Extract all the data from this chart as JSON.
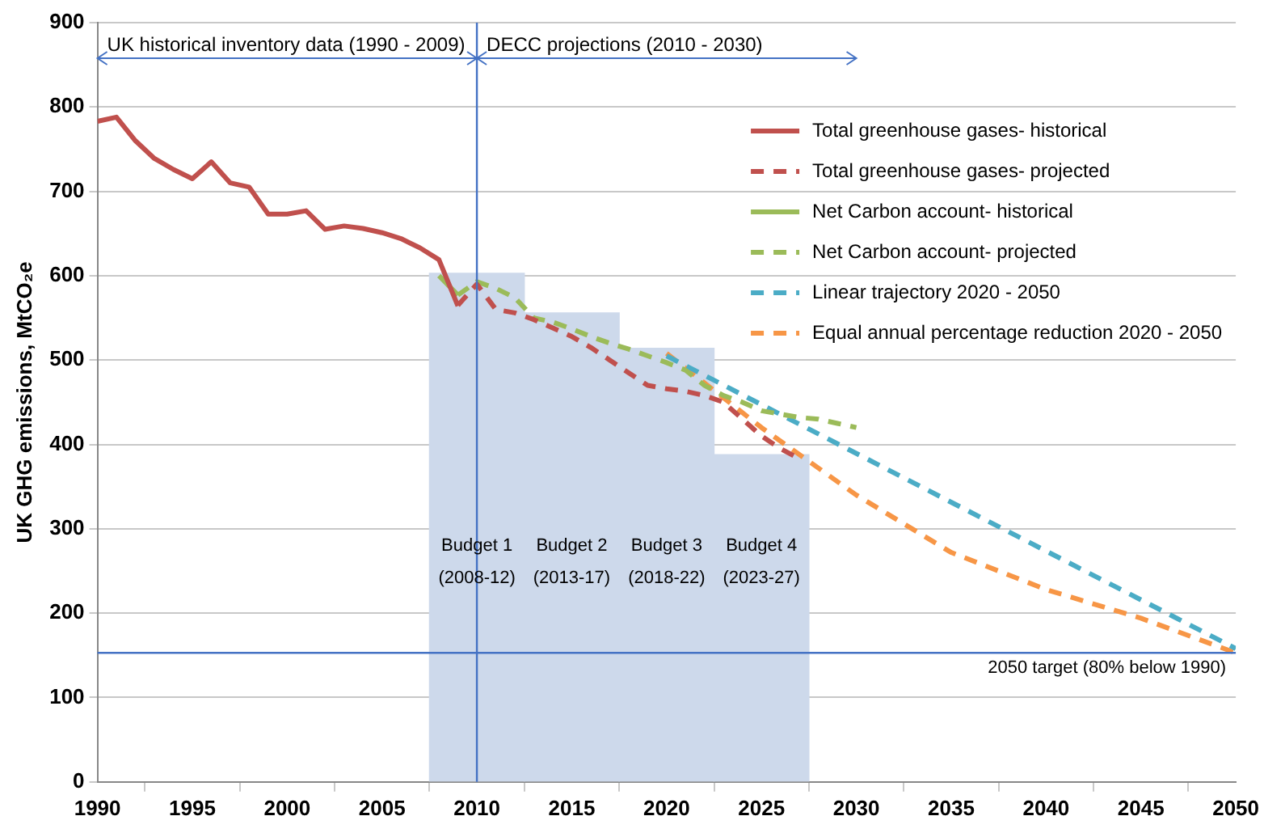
{
  "chart_data": {
    "type": "line",
    "ylabel": "UK GHG emissions, MtCO₂e",
    "xlim": [
      1990,
      2050
    ],
    "xticks": [
      1990,
      1995,
      2000,
      2005,
      2010,
      2015,
      2020,
      2025,
      2030,
      2035,
      2040,
      2045,
      2050
    ],
    "ylim": [
      0,
      900
    ],
    "yticks": [
      0,
      100,
      200,
      300,
      400,
      500,
      600,
      700,
      800,
      900
    ],
    "grid": "y",
    "legend": "top right",
    "series": [
      {
        "type": "bar",
        "color": "#cdd9eb",
        "x": [
          2010,
          2015,
          2020,
          2025
        ],
        "values": [
          603,
          556,
          514,
          388
        ]
      },
      {
        "name": "Total greenhouse gases- historical",
        "color": "#c0504d",
        "line_style": "solid",
        "x": [
          1990,
          1991,
          1992,
          1993,
          1994,
          1995,
          1996,
          1997,
          1998,
          1999,
          2000,
          2001,
          2002,
          2003,
          2004,
          2005,
          2006,
          2007,
          2008,
          2009
        ],
        "values": [
          783,
          788,
          760,
          739,
          726,
          715,
          735,
          710,
          705,
          673,
          673,
          677,
          655,
          659,
          656,
          651,
          644,
          633,
          619,
          564
        ]
      },
      {
        "name": "Total greenhouse gases- projected",
        "color": "#c0504d",
        "line_style": "dashed",
        "x": [
          2009,
          2010,
          2011,
          2012,
          2013,
          2014,
          2015,
          2016,
          2017,
          2018,
          2019,
          2020,
          2021,
          2022,
          2023,
          2024,
          2025,
          2026,
          2027
        ],
        "values": [
          565,
          590,
          560,
          556,
          548,
          538,
          528,
          515,
          500,
          485,
          470,
          466,
          463,
          458,
          450,
          430,
          410,
          395,
          383
        ]
      },
      {
        "name": "Net Carbon account- historical",
        "color": "#9bbb59",
        "line_style": "solid",
        "x": [
          2008,
          2009
        ],
        "values": [
          600,
          577
        ]
      },
      {
        "name": "Net Carbon account- projected",
        "color": "#9bbb59",
        "line_style": "dashed",
        "x": [
          2009,
          2010,
          2011,
          2012,
          2013,
          2014,
          2015,
          2016,
          2017,
          2018,
          2019,
          2020,
          2021,
          2022,
          2023,
          2024,
          2025,
          2026,
          2027,
          2028,
          2029,
          2030
        ],
        "values": [
          577,
          593,
          585,
          574,
          550,
          545,
          537,
          528,
          520,
          513,
          505,
          497,
          488,
          470,
          458,
          450,
          440,
          436,
          432,
          430,
          425,
          420
        ]
      },
      {
        "name": "Linear trajectory 2020 - 2050",
        "color": "#4bacc6",
        "line_style": "dashed",
        "x": [
          2020,
          2050
        ],
        "values": [
          505,
          158
        ]
      },
      {
        "name": "Equal annual percentage reduction 2020 - 2050",
        "color": "#f79646",
        "line_style": "dashed",
        "x": [
          2020,
          2025,
          2030,
          2035,
          2040,
          2045,
          2050
        ],
        "values": [
          508,
          420,
          340,
          272,
          228,
          194,
          153
        ]
      }
    ],
    "ref_lines": [
      {
        "axis": "x",
        "value": 2010,
        "color": "#4472c4"
      },
      {
        "axis": "y",
        "value": 153,
        "label": "2050 target (80% below 1990)",
        "color": "#4472c4"
      }
    ],
    "annotations": [
      "UK historical inventory data (1990 - 2009)",
      "DECC projections (2010 - 2030)",
      "Budget 1 (2008-12)",
      "Budget 2 (2013-17)",
      "Budget 3 (2018-22)",
      "Budget 4 (2023-27)"
    ]
  }
}
